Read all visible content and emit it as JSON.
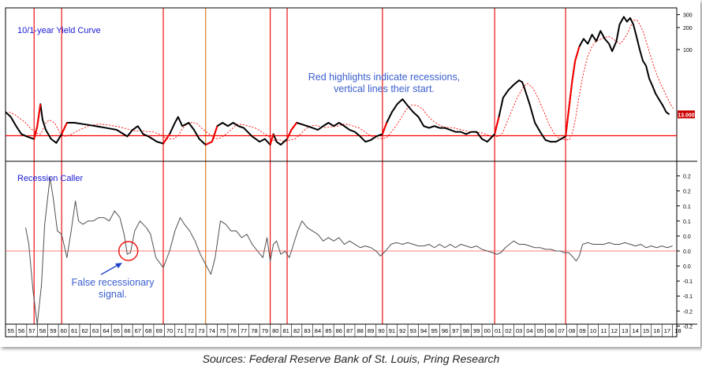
{
  "chart_data": {
    "type": "line",
    "panels": [
      {
        "title": "10/1-year Yield Curve",
        "scale": "log",
        "y_ticks": [
          "300",
          "200",
          "100"
        ],
        "last_value_label": "13.000"
      },
      {
        "title": "Recession Caller",
        "y_ticks": [
          "0.2",
          "0.2",
          "0.1",
          "0.1",
          "0.0",
          "0.0",
          "0.0",
          "-0.1",
          "-0.1",
          "-0.2",
          "-0.2"
        ],
        "zero_line": true
      }
    ],
    "x_tick_labels": [
      "55",
      "56",
      "57",
      "58",
      "59",
      "60",
      "61",
      "62",
      "63",
      "64",
      "65",
      "66",
      "67",
      "68",
      "69",
      "70",
      "71",
      "72",
      "73",
      "74",
      "75",
      "76",
      "77",
      "78",
      "79",
      "80",
      "81",
      "82",
      "83",
      "84",
      "85",
      "86",
      "87",
      "88",
      "89",
      "90",
      "91",
      "92",
      "93",
      "94",
      "95",
      "96",
      "97",
      "98",
      "99",
      "00",
      "01",
      "02",
      "03",
      "04",
      "05",
      "06",
      "07",
      "08",
      "09",
      "10",
      "11",
      "12",
      "13",
      "14",
      "15",
      "16",
      "17",
      "18"
    ],
    "x_range": [
      1955,
      2018.4
    ],
    "recession_starts": [
      1957.7,
      1960.3,
      1969.9,
      1973.9,
      1980.0,
      1981.6,
      1990.6,
      2001.2,
      2007.9
    ],
    "yield_curve": {
      "line_color": "#000000",
      "recession_color": "#ff0000",
      "moving_average_color": "#ff0000",
      "series": [
        [
          1955.0,
          14
        ],
        [
          1955.5,
          12
        ],
        [
          1956.0,
          9
        ],
        [
          1956.5,
          7
        ],
        [
          1957.0,
          6.5
        ],
        [
          1957.7,
          6
        ],
        [
          1958.0,
          9
        ],
        [
          1958.3,
          18
        ],
        [
          1958.5,
          11
        ],
        [
          1958.8,
          8
        ],
        [
          1959.3,
          6
        ],
        [
          1959.8,
          5.3
        ],
        [
          1960.3,
          7
        ],
        [
          1960.8,
          10
        ],
        [
          1961.5,
          10
        ],
        [
          1962.5,
          9.5
        ],
        [
          1963.5,
          9
        ],
        [
          1964.5,
          8.5
        ],
        [
          1965.5,
          8
        ],
        [
          1966.5,
          6.5
        ],
        [
          1967.0,
          8
        ],
        [
          1967.5,
          9
        ],
        [
          1968.0,
          7
        ],
        [
          1968.5,
          6.5
        ],
        [
          1969.3,
          5.5
        ],
        [
          1969.9,
          5.2
        ],
        [
          1970.5,
          7
        ],
        [
          1971.0,
          10
        ],
        [
          1971.3,
          12
        ],
        [
          1971.7,
          9
        ],
        [
          1972.3,
          10
        ],
        [
          1972.8,
          8
        ],
        [
          1973.3,
          6
        ],
        [
          1973.9,
          5
        ],
        [
          1974.5,
          5.5
        ],
        [
          1975.0,
          9
        ],
        [
          1975.5,
          10
        ],
        [
          1976.0,
          9
        ],
        [
          1976.5,
          10
        ],
        [
          1977.0,
          9
        ],
        [
          1977.5,
          8.5
        ],
        [
          1978.3,
          6.5
        ],
        [
          1979.0,
          5.5
        ],
        [
          1979.5,
          6
        ],
        [
          1980.0,
          5
        ],
        [
          1980.3,
          7
        ],
        [
          1980.6,
          5.5
        ],
        [
          1981.0,
          5
        ],
        [
          1981.6,
          6
        ],
        [
          1982.0,
          8
        ],
        [
          1982.5,
          10
        ],
        [
          1983.0,
          9.5
        ],
        [
          1983.5,
          9
        ],
        [
          1984.0,
          8.5
        ],
        [
          1984.5,
          8
        ],
        [
          1985.0,
          9
        ],
        [
          1985.5,
          10
        ],
        [
          1986.0,
          9
        ],
        [
          1986.5,
          10
        ],
        [
          1987.0,
          9
        ],
        [
          1987.5,
          8
        ],
        [
          1988.0,
          7.5
        ],
        [
          1988.5,
          6.5
        ],
        [
          1989.0,
          5.5
        ],
        [
          1989.5,
          5.8
        ],
        [
          1990.0,
          6.5
        ],
        [
          1990.6,
          7
        ],
        [
          1991.0,
          10
        ],
        [
          1991.5,
          14
        ],
        [
          1992.0,
          18
        ],
        [
          1992.5,
          21
        ],
        [
          1993.0,
          17
        ],
        [
          1993.5,
          14
        ],
        [
          1994.0,
          12
        ],
        [
          1994.5,
          9
        ],
        [
          1995.0,
          8.5
        ],
        [
          1995.5,
          9
        ],
        [
          1996.0,
          8.5
        ],
        [
          1996.5,
          8.5
        ],
        [
          1997.0,
          8
        ],
        [
          1997.5,
          7.5
        ],
        [
          1998.0,
          7.5
        ],
        [
          1998.5,
          7
        ],
        [
          1999.0,
          7.5
        ],
        [
          1999.5,
          7.5
        ],
        [
          2000.0,
          6
        ],
        [
          2000.5,
          5.5
        ],
        [
          2001.2,
          7
        ],
        [
          2001.6,
          12
        ],
        [
          2002.0,
          22
        ],
        [
          2002.5,
          28
        ],
        [
          2003.0,
          33
        ],
        [
          2003.5,
          38
        ],
        [
          2003.8,
          36
        ],
        [
          2004.0,
          30
        ],
        [
          2004.5,
          18
        ],
        [
          2005.0,
          10
        ],
        [
          2005.5,
          7.5
        ],
        [
          2006.0,
          5.8
        ],
        [
          2006.5,
          5.5
        ],
        [
          2007.0,
          5.5
        ],
        [
          2007.9,
          6.5
        ],
        [
          2008.2,
          15
        ],
        [
          2008.5,
          35
        ],
        [
          2008.8,
          70
        ],
        [
          2009.2,
          110
        ],
        [
          2009.6,
          140
        ],
        [
          2010.0,
          120
        ],
        [
          2010.4,
          160
        ],
        [
          2010.8,
          130
        ],
        [
          2011.2,
          180
        ],
        [
          2011.6,
          140
        ],
        [
          2012.0,
          120
        ],
        [
          2012.3,
          95
        ],
        [
          2012.7,
          130
        ],
        [
          2013.0,
          220
        ],
        [
          2013.4,
          280
        ],
        [
          2013.7,
          240
        ],
        [
          2014.0,
          270
        ],
        [
          2014.3,
          220
        ],
        [
          2014.6,
          150
        ],
        [
          2014.9,
          100
        ],
        [
          2015.2,
          70
        ],
        [
          2015.5,
          60
        ],
        [
          2015.8,
          40
        ],
        [
          2016.1,
          32
        ],
        [
          2016.4,
          25
        ],
        [
          2016.8,
          20
        ],
        [
          2017.1,
          17
        ],
        [
          2017.4,
          14
        ],
        [
          2017.7,
          13
        ]
      ]
    },
    "recession_caller": {
      "line_color": "#505050",
      "series": [
        [
          1956.9,
          0.07
        ],
        [
          1957.2,
          0.02
        ],
        [
          1957.6,
          -0.12
        ],
        [
          1958.0,
          -0.22
        ],
        [
          1958.4,
          -0.1
        ],
        [
          1958.7,
          0.08
        ],
        [
          1959.2,
          0.22
        ],
        [
          1959.5,
          0.16
        ],
        [
          1959.9,
          0.06
        ],
        [
          1960.3,
          0.05
        ],
        [
          1960.8,
          -0.02
        ],
        [
          1961.2,
          0.06
        ],
        [
          1961.6,
          0.15
        ],
        [
          1961.9,
          0.09
        ],
        [
          1962.3,
          0.08
        ],
        [
          1962.8,
          0.09
        ],
        [
          1963.3,
          0.09
        ],
        [
          1963.8,
          0.1
        ],
        [
          1964.3,
          0.1
        ],
        [
          1964.8,
          0.09
        ],
        [
          1965.3,
          0.12
        ],
        [
          1965.8,
          0.1
        ],
        [
          1966.2,
          0.05
        ],
        [
          1966.5,
          -0.01
        ],
        [
          1966.8,
          -0.005
        ],
        [
          1967.2,
          0.06
        ],
        [
          1967.7,
          0.09
        ],
        [
          1968.3,
          0.07
        ],
        [
          1968.7,
          0.05
        ],
        [
          1969.2,
          -0.02
        ],
        [
          1969.9,
          -0.05
        ],
        [
          1970.5,
          0.0
        ],
        [
          1971.0,
          0.06
        ],
        [
          1971.5,
          0.1
        ],
        [
          1971.9,
          0.08
        ],
        [
          1972.4,
          0.06
        ],
        [
          1972.9,
          0.03
        ],
        [
          1973.4,
          -0.01
        ],
        [
          1973.9,
          -0.04
        ],
        [
          1974.4,
          -0.07
        ],
        [
          1974.8,
          -0.02
        ],
        [
          1975.3,
          0.09
        ],
        [
          1975.8,
          0.08
        ],
        [
          1976.3,
          0.06
        ],
        [
          1976.8,
          0.06
        ],
        [
          1977.3,
          0.04
        ],
        [
          1977.8,
          0.05
        ],
        [
          1978.3,
          0.02
        ],
        [
          1978.8,
          0.0
        ],
        [
          1979.3,
          -0.02
        ],
        [
          1979.7,
          0.04
        ],
        [
          1980.0,
          -0.03
        ],
        [
          1980.3,
          0.02
        ],
        [
          1980.6,
          0.03
        ],
        [
          1981.0,
          -0.01
        ],
        [
          1981.4,
          0.0
        ],
        [
          1981.8,
          -0.02
        ],
        [
          1982.2,
          0.02
        ],
        [
          1982.6,
          0.06
        ],
        [
          1983.0,
          0.09
        ],
        [
          1983.5,
          0.07
        ],
        [
          1984.0,
          0.06
        ],
        [
          1984.5,
          0.05
        ],
        [
          1985.0,
          0.03
        ],
        [
          1985.5,
          0.04
        ],
        [
          1986.0,
          0.03
        ],
        [
          1986.5,
          0.04
        ],
        [
          1987.0,
          0.02
        ],
        [
          1987.5,
          0.03
        ],
        [
          1988.0,
          0.02
        ],
        [
          1988.5,
          0.01
        ],
        [
          1989.0,
          0.015
        ],
        [
          1989.5,
          0.01
        ],
        [
          1990.0,
          0.0
        ],
        [
          1990.4,
          -0.015
        ],
        [
          1990.9,
          0.0
        ],
        [
          1991.4,
          0.02
        ],
        [
          1991.9,
          0.025
        ],
        [
          1992.5,
          0.02
        ],
        [
          1993.0,
          0.025
        ],
        [
          1993.5,
          0.02
        ],
        [
          1994.0,
          0.015
        ],
        [
          1994.5,
          0.015
        ],
        [
          1995.0,
          0.02
        ],
        [
          1995.5,
          0.01
        ],
        [
          1996.0,
          0.02
        ],
        [
          1996.5,
          0.01
        ],
        [
          1997.0,
          0.02
        ],
        [
          1997.5,
          0.01
        ],
        [
          1998.0,
          0.02
        ],
        [
          1998.5,
          0.015
        ],
        [
          1999.0,
          0.01
        ],
        [
          1999.5,
          0.015
        ],
        [
          2000.0,
          0.005
        ],
        [
          2000.5,
          0.0
        ],
        [
          2001.0,
          -0.005
        ],
        [
          2001.4,
          -0.01
        ],
        [
          2001.8,
          -0.005
        ],
        [
          2002.2,
          0.01
        ],
        [
          2002.6,
          0.02
        ],
        [
          2003.0,
          0.03
        ],
        [
          2003.5,
          0.02
        ],
        [
          2004.0,
          0.02
        ],
        [
          2004.5,
          0.015
        ],
        [
          2005.0,
          0.01
        ],
        [
          2005.5,
          0.01
        ],
        [
          2006.0,
          0.005
        ],
        [
          2006.5,
          0.005
        ],
        [
          2007.0,
          0.0
        ],
        [
          2007.4,
          0.0
        ],
        [
          2007.8,
          -0.005
        ],
        [
          2008.2,
          -0.005
        ],
        [
          2008.5,
          -0.015
        ],
        [
          2008.9,
          -0.03
        ],
        [
          2009.2,
          -0.015
        ],
        [
          2009.5,
          0.02
        ],
        [
          2010.0,
          0.025
        ],
        [
          2010.5,
          0.02
        ],
        [
          2011.0,
          0.02
        ],
        [
          2011.5,
          0.02
        ],
        [
          2012.0,
          0.025
        ],
        [
          2012.5,
          0.02
        ],
        [
          2013.0,
          0.02
        ],
        [
          2013.5,
          0.025
        ],
        [
          2014.0,
          0.02
        ],
        [
          2014.5,
          0.015
        ],
        [
          2015.0,
          0.02
        ],
        [
          2015.5,
          0.01
        ],
        [
          2016.0,
          0.015
        ],
        [
          2016.5,
          0.01
        ],
        [
          2017.0,
          0.015
        ],
        [
          2017.5,
          0.01
        ],
        [
          2018.0,
          0.015
        ]
      ]
    },
    "annotations": [
      "Red highlights indicate recessions,\nvertical lines their start.",
      "False recessionary\nsignal."
    ]
  },
  "footer": {
    "source": "Sources: Federal Reserve Bank of St. Louis, Pring Research"
  }
}
